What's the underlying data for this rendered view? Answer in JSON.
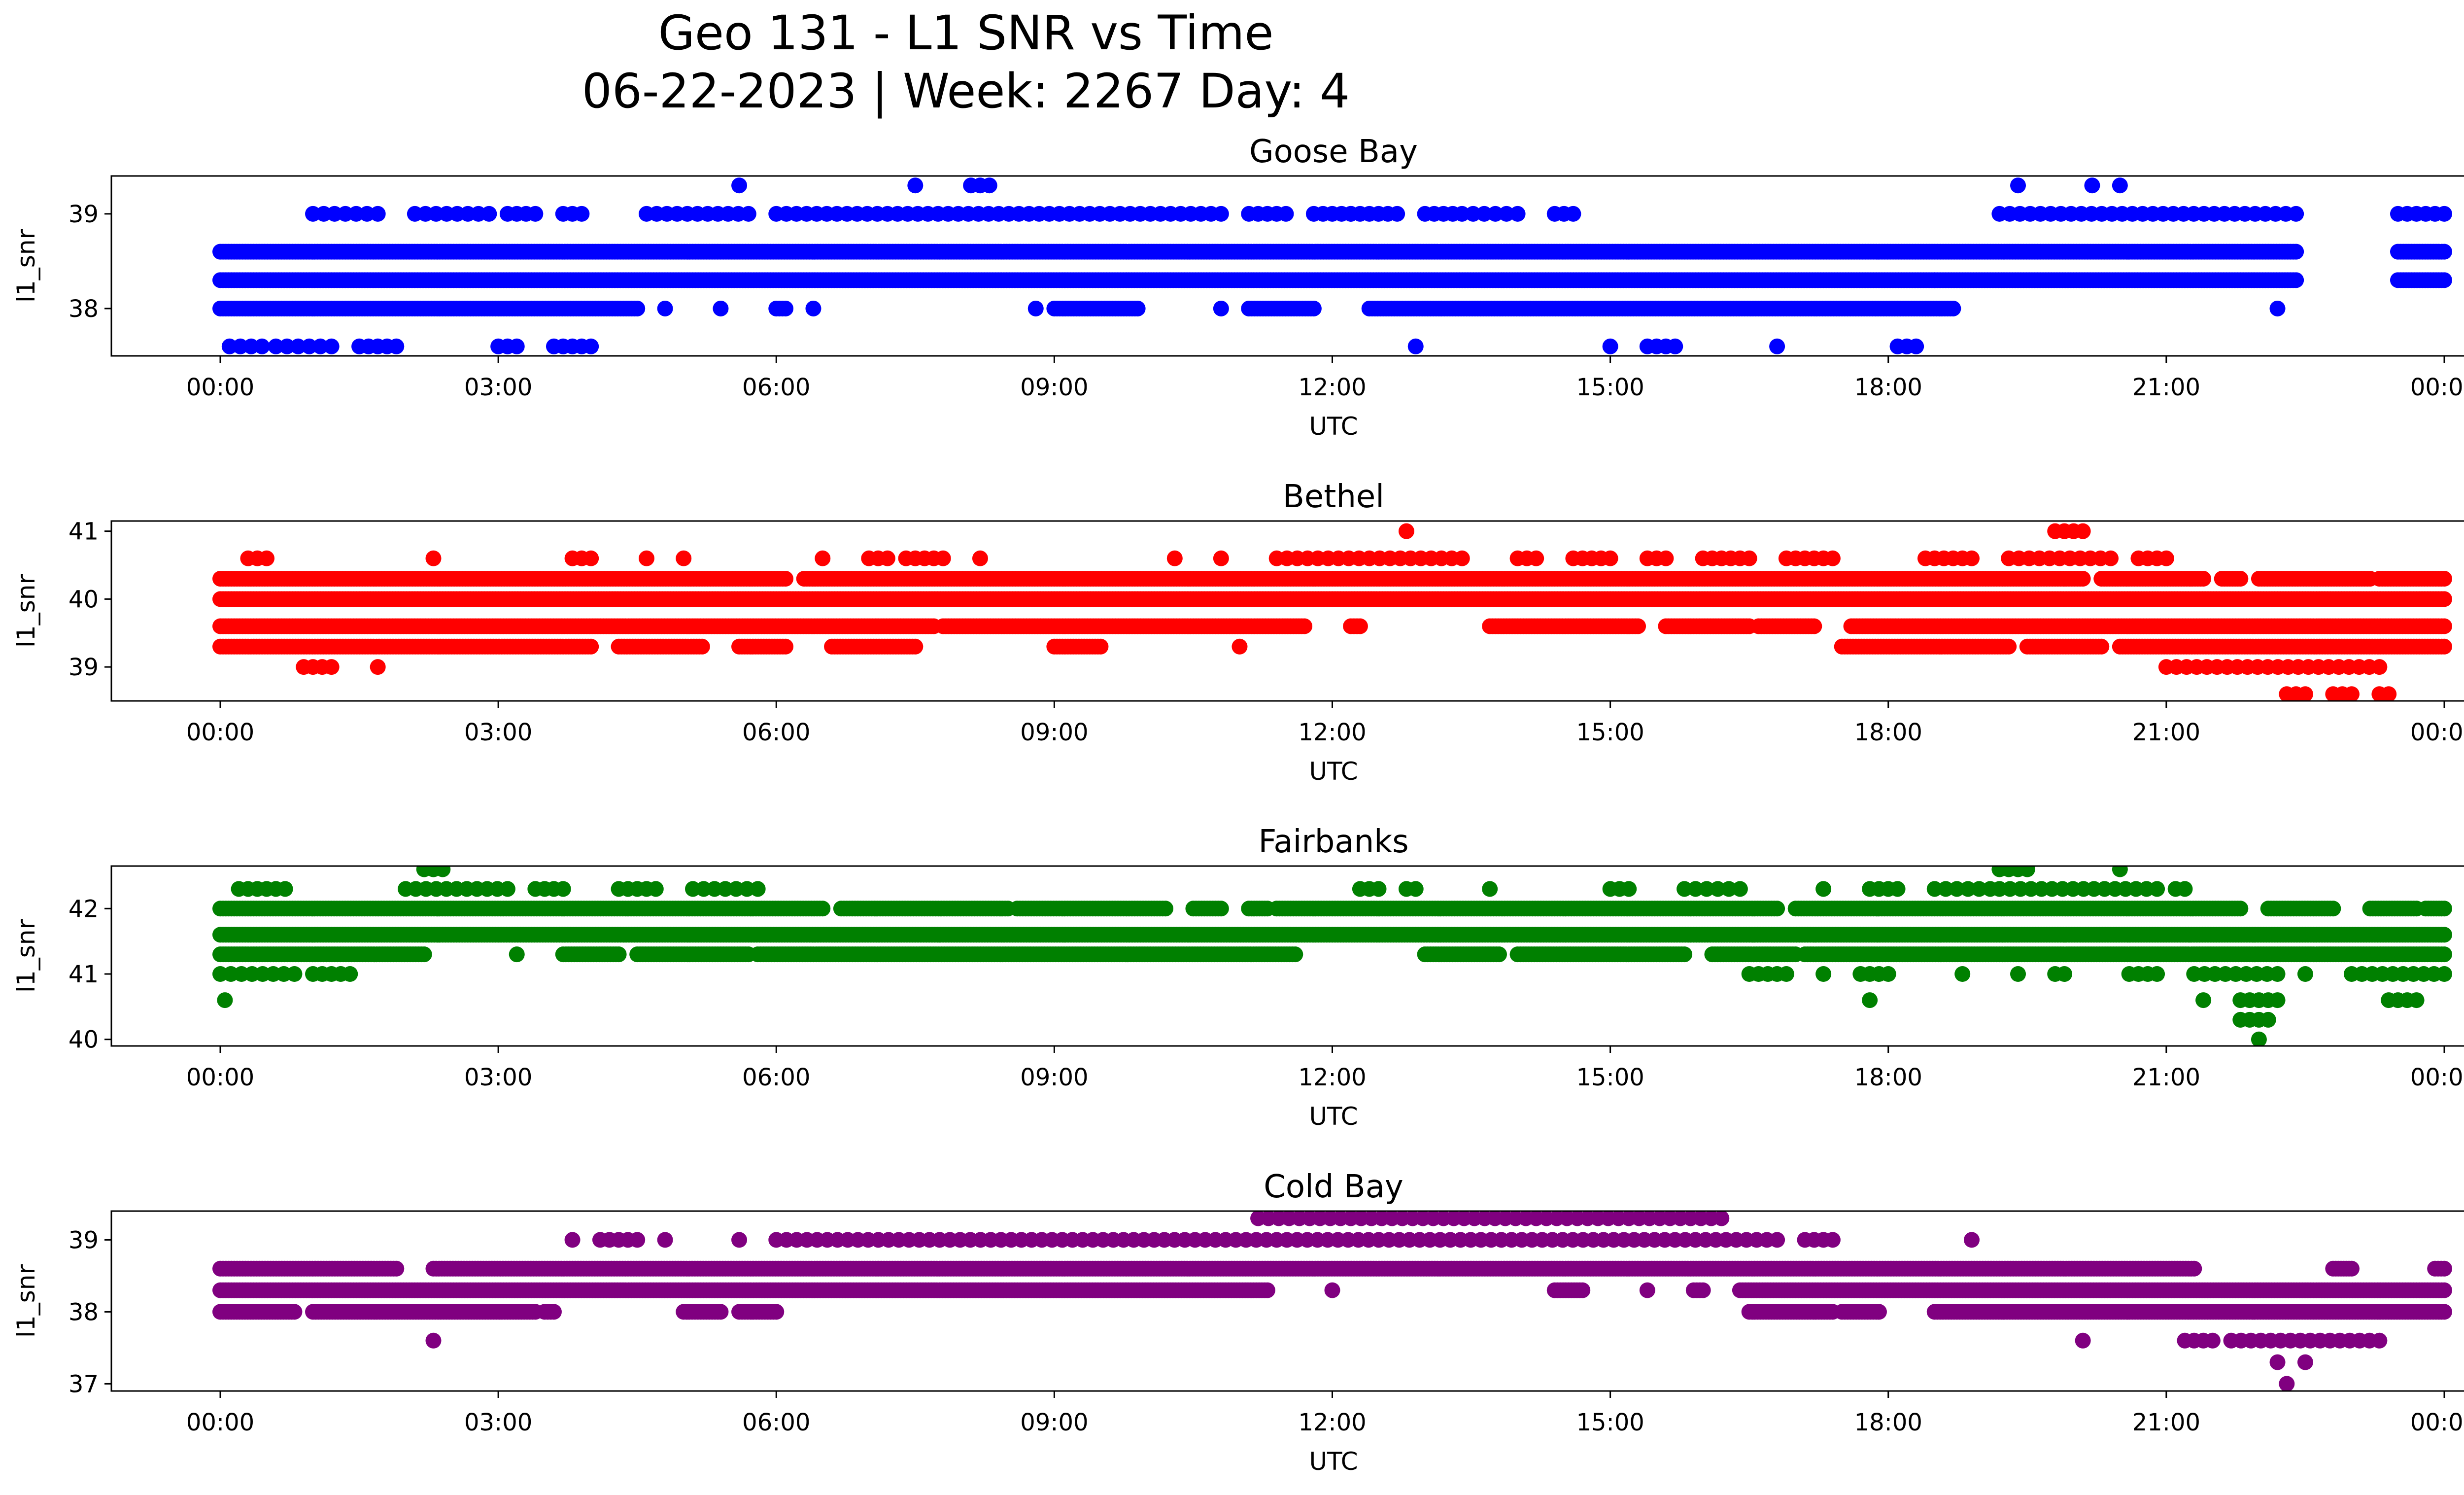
{
  "figure": {
    "title_line1": "Geo 131 - L1 SNR vs Time",
    "title_line2": "06-22-2023 | Week: 2267 Day: 4"
  },
  "chart_data": [
    {
      "type": "scatter",
      "title": "Goose Bay",
      "xlabel": "UTC",
      "ylabel": "l1_snr",
      "color": "#0000ff",
      "x_ticks": [
        "00:00",
        "03:00",
        "06:00",
        "09:00",
        "12:00",
        "15:00",
        "18:00",
        "21:00",
        "00:00"
      ],
      "x_range_hours": [
        0,
        24
      ],
      "ylim": [
        37.5,
        39.4
      ],
      "y_ticks": [
        38,
        39
      ],
      "levels": [
        {
          "y": 37.6,
          "mode": "sparse",
          "ranges": [
            [
              0.1,
              0.45
            ],
            [
              0.6,
              1.2
            ],
            [
              1.5,
              1.9
            ],
            [
              3.0,
              3.2
            ],
            [
              3.6,
              4.0
            ],
            [
              12.9,
              12.9
            ],
            [
              15.0,
              15.0
            ],
            [
              15.4,
              15.7
            ],
            [
              16.8,
              16.8
            ],
            [
              18.1,
              18.3
            ]
          ]
        },
        {
          "y": 38.0,
          "mode": "dense",
          "ranges": [
            [
              0.0,
              4.5
            ],
            [
              4.8,
              4.8
            ],
            [
              5.4,
              5.4
            ],
            [
              6.0,
              6.1
            ],
            [
              6.4,
              6.4
            ],
            [
              8.8,
              8.8
            ],
            [
              9.0,
              9.9
            ],
            [
              10.8,
              10.8
            ],
            [
              11.1,
              11.8
            ],
            [
              12.4,
              18.7
            ],
            [
              22.2,
              22.2
            ]
          ]
        },
        {
          "y": 38.3,
          "mode": "dense",
          "ranges": [
            [
              0.0,
              18.5
            ],
            [
              18.5,
              22.4
            ],
            [
              23.5,
              24.0
            ]
          ]
        },
        {
          "y": 38.6,
          "mode": "dense",
          "ranges": [
            [
              0.0,
              22.4
            ],
            [
              23.5,
              24.0
            ]
          ]
        },
        {
          "y": 39.0,
          "mode": "sparse",
          "ranges": [
            [
              1.0,
              1.7
            ],
            [
              2.1,
              2.9
            ],
            [
              3.1,
              3.4
            ],
            [
              3.7,
              3.9
            ],
            [
              4.6,
              5.7
            ],
            [
              6.0,
              10.8
            ],
            [
              11.1,
              11.5
            ],
            [
              11.8,
              12.2
            ],
            [
              12.2,
              12.7
            ],
            [
              13.0,
              13.3
            ],
            [
              13.4,
              14.0
            ],
            [
              14.4,
              14.6
            ],
            [
              19.2,
              22.4
            ],
            [
              23.5,
              24.0
            ]
          ]
        },
        {
          "y": 39.3,
          "mode": "sparse",
          "ranges": [
            [
              5.6,
              5.6
            ],
            [
              7.5,
              7.5
            ],
            [
              8.1,
              8.3
            ],
            [
              19.4,
              19.4
            ],
            [
              20.2,
              20.2
            ],
            [
              20.5,
              20.5
            ]
          ]
        }
      ]
    },
    {
      "type": "scatter",
      "title": "Bethel",
      "xlabel": "UTC",
      "ylabel": "l1_snr",
      "color": "#ff0000",
      "x_ticks": [
        "00:00",
        "03:00",
        "06:00",
        "09:00",
        "12:00",
        "15:00",
        "18:00",
        "21:00",
        "00:00"
      ],
      "x_range_hours": [
        0,
        24
      ],
      "ylim": [
        38.5,
        41.15
      ],
      "y_ticks": [
        39,
        40,
        41
      ],
      "levels": [
        {
          "y": 38.6,
          "mode": "sparse",
          "ranges": [
            [
              22.3,
              22.5
            ],
            [
              22.8,
              23.0
            ],
            [
              23.3,
              23.4
            ]
          ]
        },
        {
          "y": 39.0,
          "mode": "sparse",
          "ranges": [
            [
              0.9,
              1.2
            ],
            [
              1.7,
              1.7
            ],
            [
              21.0,
              23.3
            ]
          ]
        },
        {
          "y": 39.3,
          "mode": "dense",
          "ranges": [
            [
              0.0,
              4.0
            ],
            [
              4.3,
              5.2
            ],
            [
              5.6,
              6.1
            ],
            [
              6.6,
              7.5
            ],
            [
              9.0,
              9.5
            ],
            [
              11.0,
              11.0
            ],
            [
              17.5,
              19.3
            ],
            [
              19.5,
              20.3
            ],
            [
              20.5,
              24.0
            ]
          ]
        },
        {
          "y": 39.6,
          "mode": "dense",
          "ranges": [
            [
              0.0,
              7.7
            ],
            [
              7.8,
              11.7
            ],
            [
              12.2,
              12.3
            ],
            [
              13.7,
              15.3
            ],
            [
              15.6,
              16.5
            ],
            [
              16.6,
              17.2
            ],
            [
              17.6,
              24.0
            ]
          ]
        },
        {
          "y": 40.0,
          "mode": "dense",
          "ranges": [
            [
              0.0,
              24.0
            ]
          ]
        },
        {
          "y": 40.3,
          "mode": "dense",
          "ranges": [
            [
              0.0,
              6.1
            ],
            [
              6.3,
              20.1
            ],
            [
              20.3,
              21.4
            ],
            [
              21.6,
              21.8
            ],
            [
              22.0,
              23.2
            ],
            [
              23.3,
              24.0
            ]
          ]
        },
        {
          "y": 40.6,
          "mode": "sparse",
          "ranges": [
            [
              0.3,
              0.5
            ],
            [
              2.3,
              2.3
            ],
            [
              3.8,
              4.0
            ],
            [
              4.6,
              4.6
            ],
            [
              5.0,
              5.0
            ],
            [
              6.5,
              6.5
            ],
            [
              7.0,
              7.2
            ],
            [
              7.4,
              7.8
            ],
            [
              8.2,
              8.2
            ],
            [
              10.3,
              10.3
            ],
            [
              10.8,
              10.8
            ],
            [
              11.4,
              13.4
            ],
            [
              14.0,
              14.2
            ],
            [
              14.6,
              15.0
            ],
            [
              15.4,
              15.6
            ],
            [
              16.0,
              16.5
            ],
            [
              16.9,
              17.4
            ],
            [
              18.4,
              18.9
            ],
            [
              19.3,
              20.4
            ],
            [
              20.7,
              21.0
            ]
          ]
        },
        {
          "y": 41.0,
          "mode": "sparse",
          "ranges": [
            [
              12.8,
              12.8
            ],
            [
              19.8,
              20.1
            ]
          ]
        }
      ]
    },
    {
      "type": "scatter",
      "title": "Fairbanks",
      "xlabel": "UTC",
      "ylabel": "l1_snr",
      "color": "#008000",
      "x_ticks": [
        "00:00",
        "03:00",
        "06:00",
        "09:00",
        "12:00",
        "15:00",
        "18:00",
        "21:00",
        "00:00"
      ],
      "x_range_hours": [
        0,
        24
      ],
      "ylim": [
        39.9,
        42.65
      ],
      "y_ticks": [
        40,
        41,
        42
      ],
      "levels": [
        {
          "y": 40.0,
          "mode": "sparse",
          "ranges": [
            [
              22.0,
              22.0
            ]
          ]
        },
        {
          "y": 40.3,
          "mode": "sparse",
          "ranges": [
            [
              21.8,
              22.1
            ]
          ]
        },
        {
          "y": 40.6,
          "mode": "sparse",
          "ranges": [
            [
              0.05,
              0.05
            ],
            [
              17.8,
              17.8
            ],
            [
              21.4,
              21.4
            ],
            [
              21.8,
              22.2
            ],
            [
              23.4,
              23.7
            ]
          ]
        },
        {
          "y": 41.0,
          "mode": "sparse",
          "ranges": [
            [
              0.0,
              0.8
            ],
            [
              1.0,
              1.4
            ],
            [
              16.5,
              16.9
            ],
            [
              17.3,
              17.3
            ],
            [
              17.7,
              18.0
            ],
            [
              18.8,
              18.8
            ],
            [
              19.4,
              19.4
            ],
            [
              19.8,
              19.9
            ],
            [
              20.6,
              20.9
            ],
            [
              21.3,
              22.2
            ],
            [
              22.5,
              22.5
            ],
            [
              23.0,
              24.0
            ]
          ]
        },
        {
          "y": 41.3,
          "mode": "dense",
          "ranges": [
            [
              0.0,
              2.2
            ],
            [
              3.2,
              3.2
            ],
            [
              3.7,
              4.3
            ],
            [
              4.5,
              5.7
            ],
            [
              5.8,
              11.6
            ],
            [
              13.0,
              13.8
            ],
            [
              14.0,
              15.8
            ],
            [
              16.1,
              17.0
            ],
            [
              17.1,
              24.0
            ]
          ]
        },
        {
          "y": 41.6,
          "mode": "dense",
          "ranges": [
            [
              0.0,
              24.0
            ]
          ]
        },
        {
          "y": 42.0,
          "mode": "dense",
          "ranges": [
            [
              0.0,
              6.5
            ],
            [
              6.7,
              8.5
            ],
            [
              8.6,
              10.2
            ],
            [
              10.5,
              10.8
            ],
            [
              11.1,
              11.3
            ],
            [
              11.4,
              16.8
            ],
            [
              17.0,
              21.8
            ],
            [
              22.1,
              22.8
            ],
            [
              23.2,
              23.7
            ],
            [
              23.8,
              24.0
            ]
          ]
        },
        {
          "y": 42.3,
          "mode": "sparse",
          "ranges": [
            [
              0.2,
              0.7
            ],
            [
              2.0,
              3.1
            ],
            [
              3.4,
              3.7
            ],
            [
              4.3,
              4.7
            ],
            [
              5.1,
              5.8
            ],
            [
              12.3,
              12.5
            ],
            [
              12.8,
              12.9
            ],
            [
              13.7,
              13.7
            ],
            [
              15.0,
              15.2
            ],
            [
              15.8,
              16.4
            ],
            [
              17.3,
              17.3
            ],
            [
              17.8,
              18.1
            ],
            [
              18.5,
              19.1
            ],
            [
              19.2,
              20.9
            ],
            [
              21.1,
              21.2
            ]
          ]
        },
        {
          "y": 42.6,
          "mode": "sparse",
          "ranges": [
            [
              2.2,
              2.4
            ],
            [
              19.2,
              19.5
            ],
            [
              20.5,
              20.5
            ]
          ]
        }
      ]
    },
    {
      "type": "scatter",
      "title": "Cold Bay",
      "xlabel": "UTC",
      "ylabel": "l1_snr",
      "color": "#800080",
      "x_ticks": [
        "00:00",
        "03:00",
        "06:00",
        "09:00",
        "12:00",
        "15:00",
        "18:00",
        "21:00",
        "00:00"
      ],
      "x_range_hours": [
        0,
        24
      ],
      "ylim": [
        36.9,
        39.4
      ],
      "y_ticks": [
        37,
        38,
        39
      ],
      "levels": [
        {
          "y": 37.0,
          "mode": "sparse",
          "ranges": [
            [
              22.3,
              22.3
            ]
          ]
        },
        {
          "y": 37.3,
          "mode": "sparse",
          "ranges": [
            [
              22.2,
              22.2
            ],
            [
              22.5,
              22.5
            ]
          ]
        },
        {
          "y": 37.6,
          "mode": "sparse",
          "ranges": [
            [
              2.3,
              2.3
            ],
            [
              20.1,
              20.1
            ],
            [
              21.2,
              21.5
            ],
            [
              21.7,
              23.3
            ]
          ]
        },
        {
          "y": 38.0,
          "mode": "dense",
          "ranges": [
            [
              0.0,
              0.8
            ],
            [
              1.0,
              3.4
            ],
            [
              3.5,
              3.6
            ],
            [
              5.0,
              5.4
            ],
            [
              5.6,
              6.0
            ],
            [
              16.5,
              17.4
            ],
            [
              17.5,
              17.9
            ],
            [
              18.5,
              24.0
            ]
          ]
        },
        {
          "y": 38.3,
          "mode": "dense",
          "ranges": [
            [
              0.0,
              11.3
            ],
            [
              12.0,
              12.0
            ],
            [
              14.4,
              14.7
            ],
            [
              15.4,
              15.4
            ],
            [
              15.9,
              16.0
            ],
            [
              16.4,
              24.0
            ]
          ]
        },
        {
          "y": 38.6,
          "mode": "dense",
          "ranges": [
            [
              0.0,
              1.9
            ],
            [
              2.3,
              21.3
            ],
            [
              22.8,
              23.0
            ],
            [
              23.9,
              24.0
            ]
          ]
        },
        {
          "y": 39.0,
          "mode": "sparse",
          "ranges": [
            [
              3.8,
              3.8
            ],
            [
              4.1,
              4.5
            ],
            [
              4.8,
              4.8
            ],
            [
              5.6,
              5.6
            ],
            [
              6.0,
              16.8
            ],
            [
              17.1,
              17.4
            ],
            [
              18.9,
              18.9
            ]
          ]
        },
        {
          "y": 39.3,
          "mode": "sparse",
          "ranges": [
            [
              11.2,
              16.2
            ]
          ]
        }
      ]
    }
  ]
}
